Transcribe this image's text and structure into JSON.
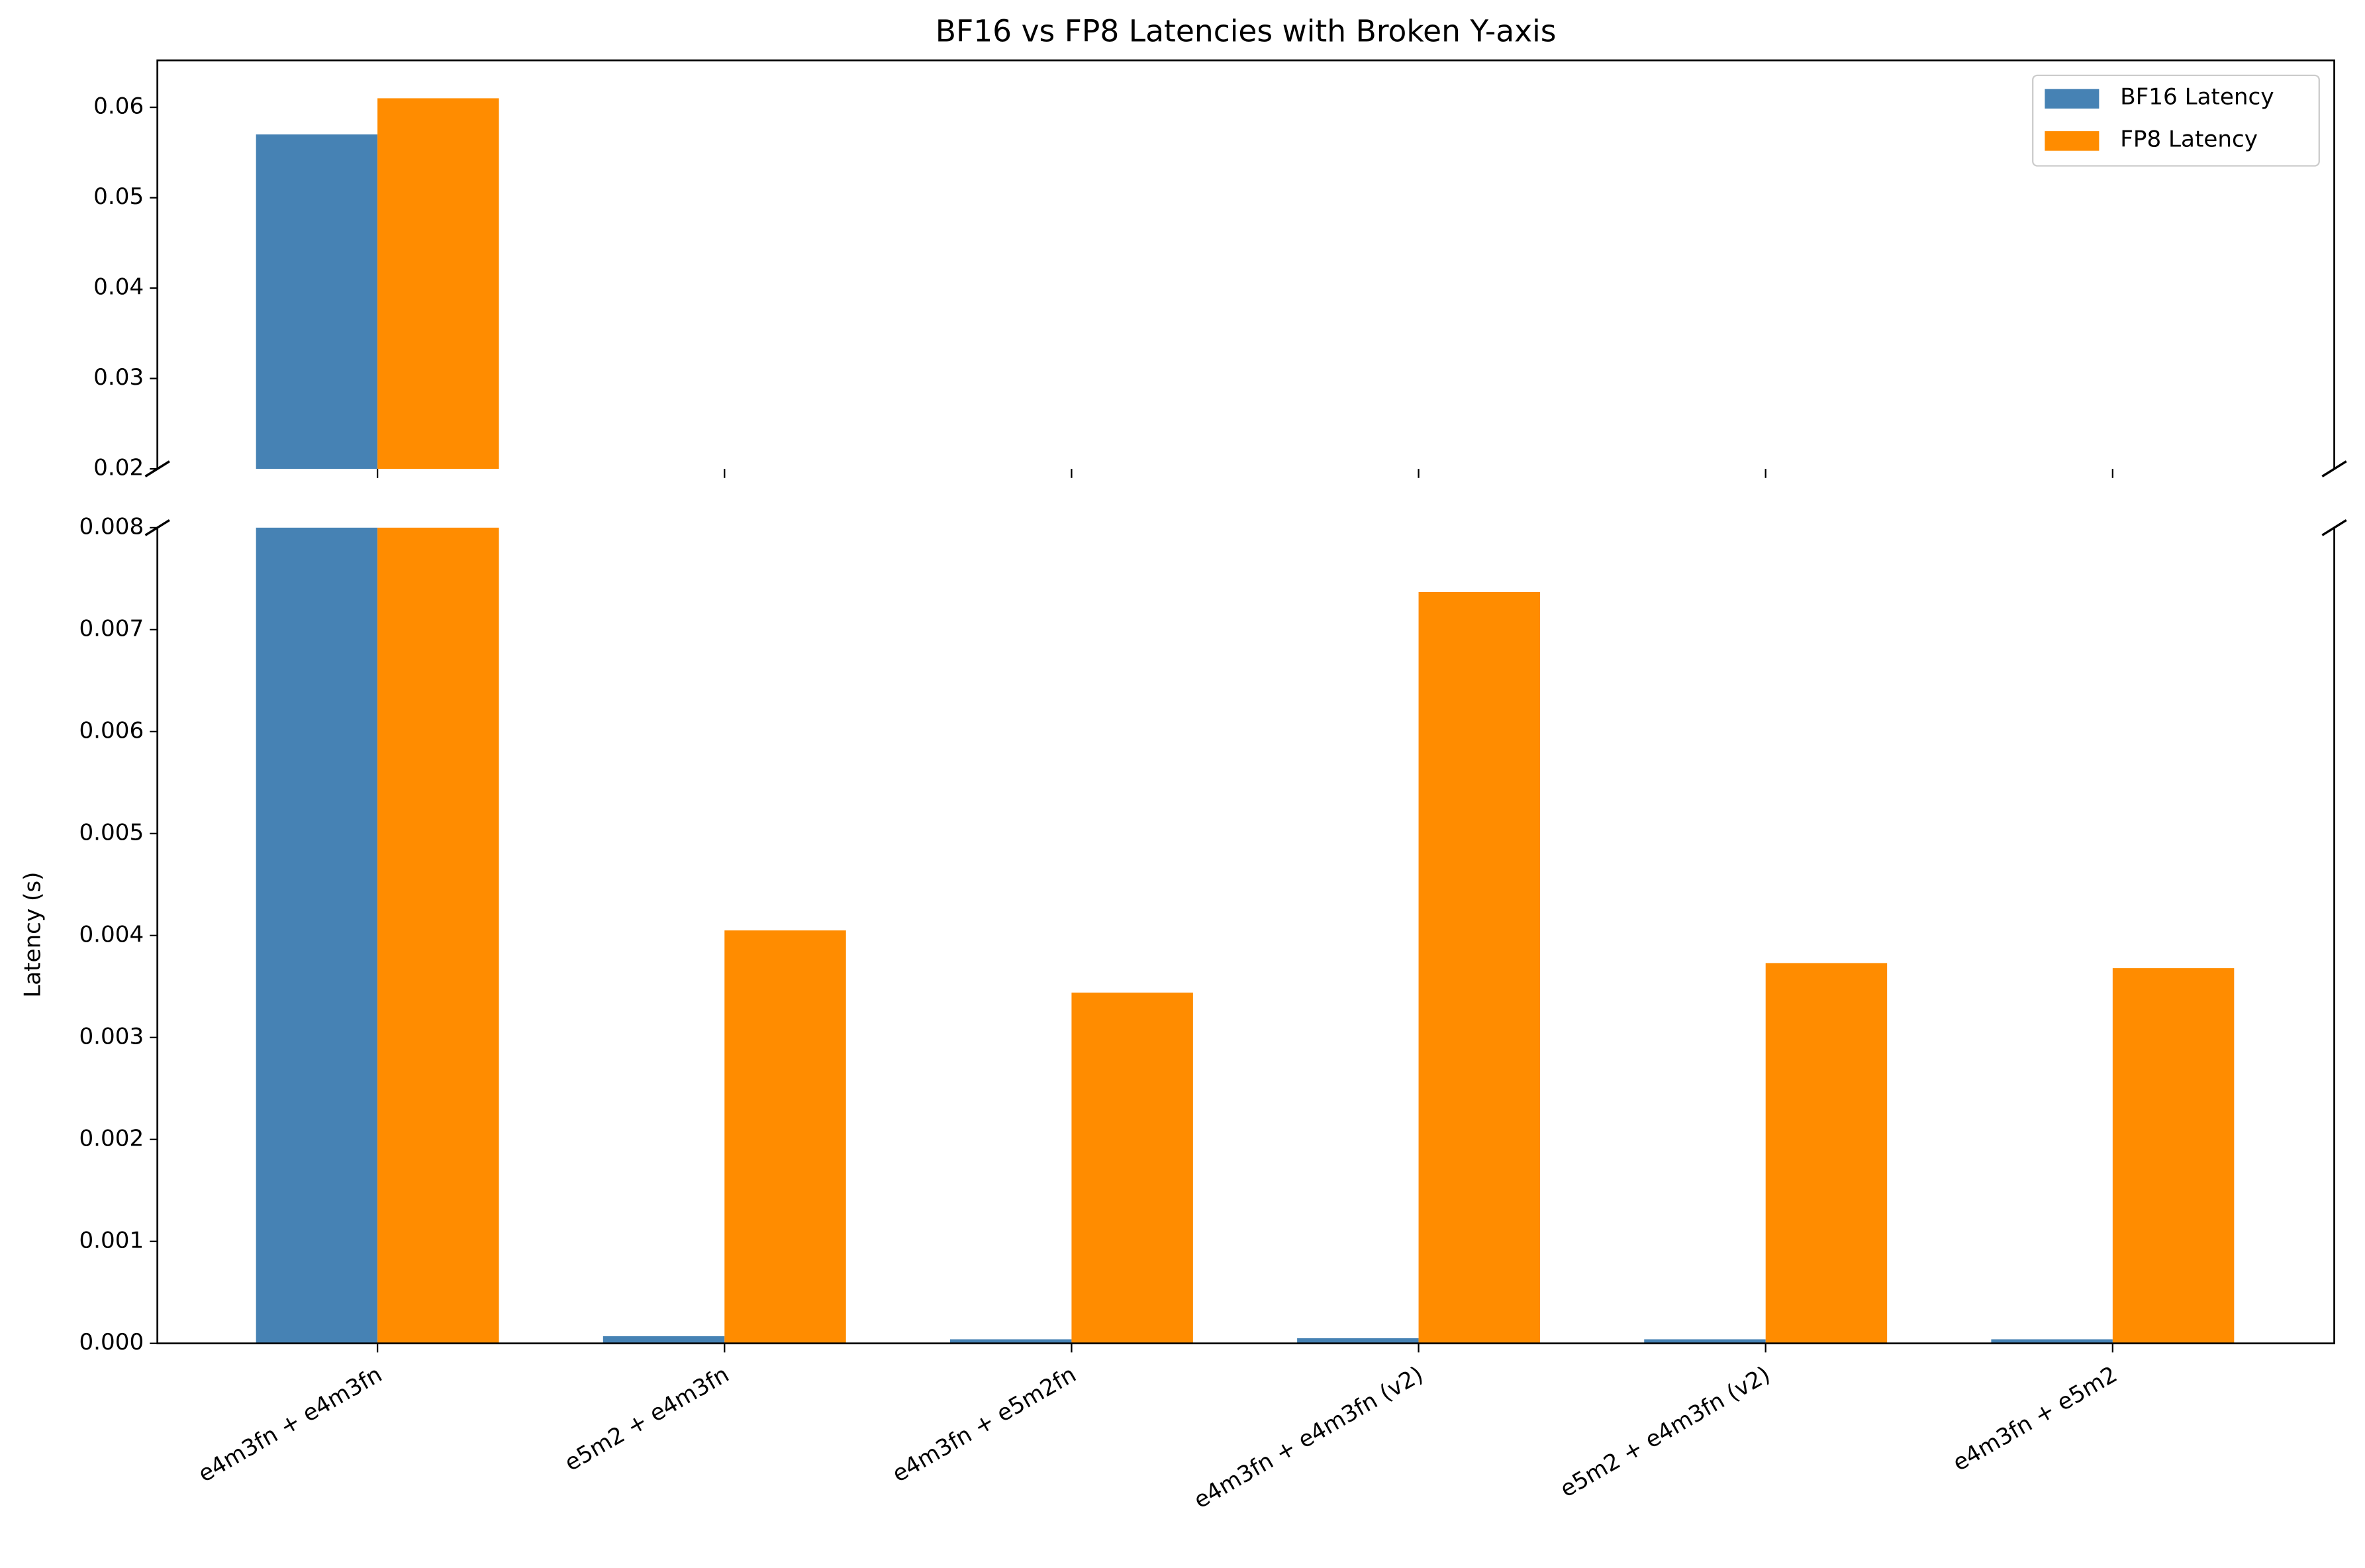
{
  "chart_data": {
    "type": "bar",
    "title": "BF16 vs FP8 Latencies with Broken Y-axis",
    "ylabel": "Latency (s)",
    "categories": [
      "e4m3fn + e4m3fn",
      "e5m2 + e4m3fn",
      "e4m3fn + e5m2fn",
      "e4m3fn + e4m3fn (v2)",
      "e5m2 + e4m3fn (v2)",
      "e4m3fn + e5m2"
    ],
    "series": [
      {
        "name": "BF16 Latency",
        "color": "#4682b4",
        "values": [
          0.057,
          7e-05,
          4e-05,
          5e-05,
          4e-05,
          4e-05
        ]
      },
      {
        "name": "FP8 Latency",
        "color": "#ff8c00",
        "values": [
          0.061,
          0.00405,
          0.00344,
          0.00737,
          0.00373,
          0.00368
        ]
      }
    ],
    "ylim_upper": [
      0.02,
      0.0652
    ],
    "yticks_upper": [
      0.02,
      0.03,
      0.04,
      0.05,
      0.06
    ],
    "ylim": [
      0,
      0.008
    ],
    "yticks": [
      {
        "value": 0,
        "label": "0.000"
      },
      {
        "value": 0.001,
        "label": "0.001"
      },
      {
        "value": 0.002,
        "label": "0.002"
      },
      {
        "value": 0.003,
        "label": "0.003"
      },
      {
        "value": 0.004,
        "label": "0.004"
      },
      {
        "value": 0.005,
        "label": "0.005"
      },
      {
        "value": 0.006,
        "label": "0.006"
      },
      {
        "value": 0.007,
        "label": "0.007"
      },
      {
        "value": 0.008,
        "label": "0.008"
      }
    ],
    "legend": "upper right",
    "grid": false
  }
}
